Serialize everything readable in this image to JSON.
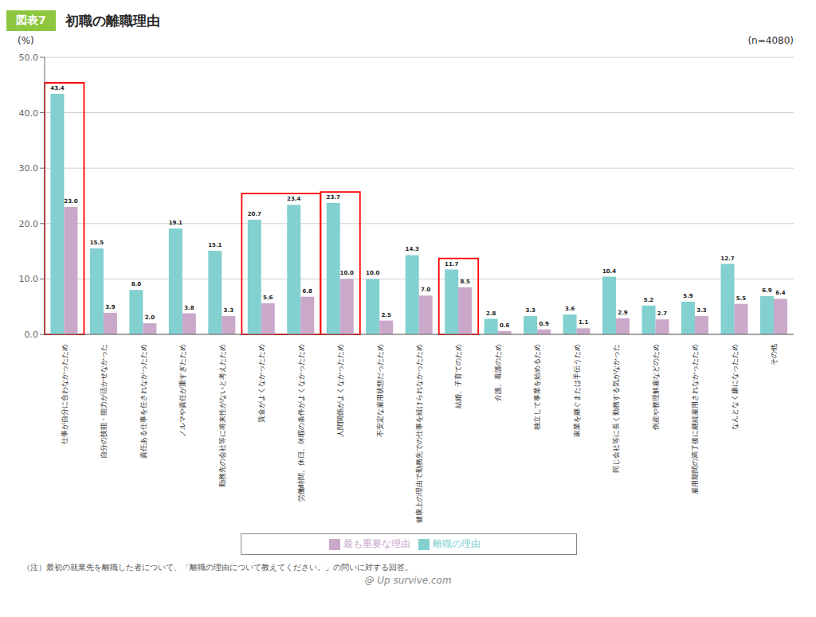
{
  "chart_data": {
    "type": "bar",
    "figure_label": "図表7",
    "title": "初職の離職理由",
    "n_label": "(n=4080)",
    "ylabel": "(%)",
    "categories": [
      "仕事が自分に合わなかったため",
      "自分の技能・能力が活かせなかった",
      "責任ある仕事を任されなかったため",
      "ノルマや責任が重すぎたため",
      "勤務先の会社等に将来性がないと考えたため",
      "賃金がよくなかったため",
      "労働時間、休日、休暇の条件がよくなかったため",
      "人間関係がよくなかったため",
      "不安定な雇用状態だったため",
      "健康上の理由で勤務先での仕事を続けられなかったため",
      "結婚、子育てのため",
      "介護、看護のため",
      "独立して事業を始めるため",
      "家業を継ぐまたは手伝うため",
      "同じ会社等に長く勤務する気がなかった",
      "倒産や整理解雇などのため",
      "雇用期間の満了後に継続雇用されなかったため",
      "なんとなく嫌になったため",
      "その他"
    ],
    "series": [
      {
        "name": "離職の理由",
        "color": "#82D0D0",
        "values": [
          43.4,
          15.5,
          8.0,
          19.1,
          15.1,
          20.7,
          23.4,
          23.7,
          10.0,
          14.3,
          11.7,
          2.8,
          3.3,
          3.6,
          10.4,
          5.2,
          5.9,
          12.7,
          6.9
        ],
        "value_labels": [
          "43.4",
          "15.5",
          "8.0",
          "19.1",
          "15.1",
          "20.7",
          "23.4",
          "23.7",
          "10.0",
          "14.3",
          "11.7",
          "2.8",
          "3.3",
          "3.6",
          "10.4",
          "5.2",
          "5.9",
          "12.7",
          "6.9"
        ]
      },
      {
        "name": "最も重要な理由",
        "color": "#C9A8C9",
        "values": [
          23.0,
          3.9,
          2.0,
          3.8,
          3.3,
          5.6,
          6.8,
          10.0,
          2.5,
          7.0,
          8.5,
          0.6,
          0.9,
          1.1,
          2.9,
          2.7,
          3.3,
          5.5,
          6.4
        ],
        "value_labels": [
          "23.0",
          "3.9",
          "2.0",
          "3.8",
          "3.3",
          "5.6",
          "6.8",
          "10.0",
          "2.5",
          "7.0",
          "8.5",
          "0.6",
          "0.9",
          "1.1",
          "2.9",
          "2.7",
          "3.3",
          "5.5",
          "6.4"
        ]
      }
    ],
    "ylim": [
      0,
      50.0
    ],
    "yticks": [
      {
        "value": 0,
        "label": "0.0"
      },
      {
        "value": 10,
        "label": "10.0"
      },
      {
        "value": 20,
        "label": "20.0"
      },
      {
        "value": 30,
        "label": "30.0"
      },
      {
        "value": 40,
        "label": "40.0"
      },
      {
        "value": 50,
        "label": "50.0"
      }
    ],
    "grid": true,
    "data_labels": true,
    "legend": "bottom",
    "highlights": [
      [
        "仕事が自分に合わなかったため"
      ],
      [
        "賃金がよくなかったため",
        "労働時間、休日、休暇の条件がよくなかったため"
      ],
      [
        "人間関係がよくなかったため"
      ],
      [
        "結婚、子育てのため"
      ]
    ],
    "note": "（注）最初の就業先を離職した者について、「離職の理由について教えてください。」の問いに対する回答。",
    "footer": "@ Up survive.com"
  }
}
